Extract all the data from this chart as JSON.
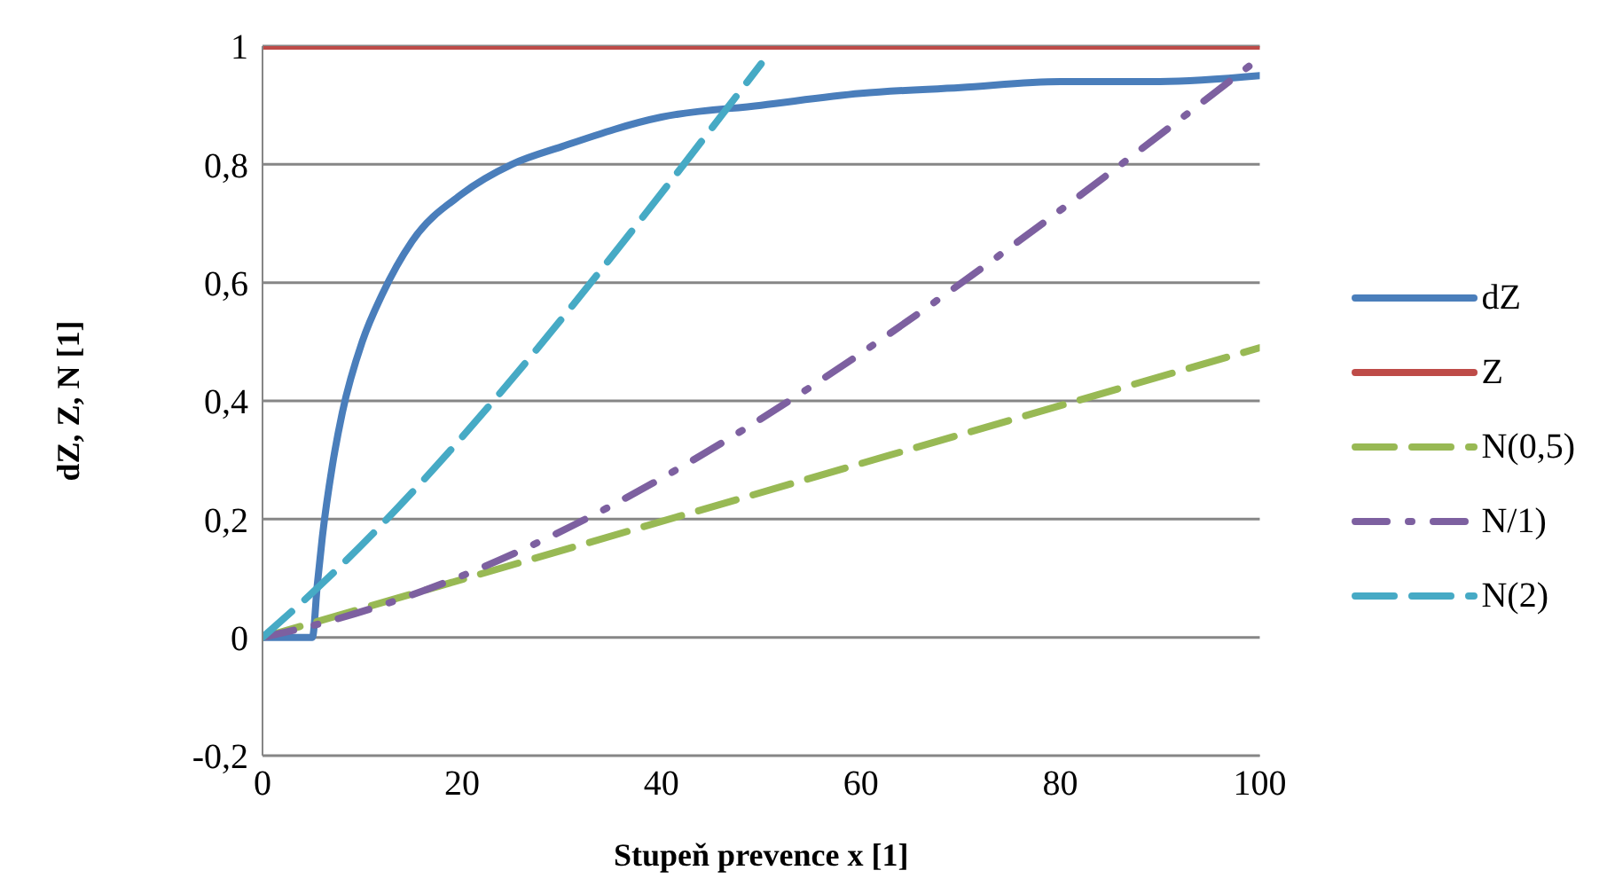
{
  "chart_data": {
    "type": "line",
    "xlabel": "Stupeň prevence x [1]",
    "ylabel": "dZ, Z, N [1]",
    "xlim": [
      0,
      100
    ],
    "xticks": [
      0,
      20,
      40,
      60,
      80,
      100
    ],
    "ylim": [
      -0.2,
      1
    ],
    "yticks": [
      {
        "value": -0.2,
        "label": "-0,2"
      },
      {
        "value": 0,
        "label": "0"
      },
      {
        "value": 0.2,
        "label": "0,2"
      },
      {
        "value": 0.4,
        "label": "0,4"
      },
      {
        "value": 0.6,
        "label": "0,6"
      },
      {
        "value": 0.8,
        "label": "0,8"
      },
      {
        "value": 1,
        "label": "1"
      }
    ],
    "grid": "y",
    "legend": "right",
    "marker": "none",
    "series": [
      {
        "name": "dZ",
        "color": "#4a7ebb",
        "line_style": "solid",
        "x": [
          0,
          5,
          5.5,
          6,
          7,
          8,
          10,
          12,
          15,
          20,
          25,
          30,
          40,
          50,
          60,
          70,
          80,
          90,
          100
        ],
        "values": [
          0,
          0,
          0.09,
          0.17,
          0.29,
          0.38,
          0.5,
          0.58,
          0.67,
          0.75,
          0.8,
          0.83,
          0.88,
          0.9,
          0.92,
          0.93,
          0.94,
          0.94,
          0.95
        ]
      },
      {
        "name": "Z",
        "color": "#be4b48",
        "line_style": "solid",
        "x": [
          0,
          100
        ],
        "values": [
          1,
          1
        ]
      },
      {
        "name": "N(0,5)",
        "color": "#98b954",
        "line_style": "dashed",
        "x": [
          0,
          100
        ],
        "values": [
          0,
          0.49
        ]
      },
      {
        "name": "N/1)",
        "color": "#7d60a0",
        "line_style": "dashdot",
        "x": [
          0,
          5,
          100
        ],
        "values": [
          0,
          0.02,
          0.98
        ]
      },
      {
        "name": "N(2)",
        "color": "#46aac5",
        "line_style": "dashed",
        "x": [
          0,
          4,
          50
        ],
        "values": [
          0,
          0.06,
          0.97
        ]
      }
    ]
  }
}
